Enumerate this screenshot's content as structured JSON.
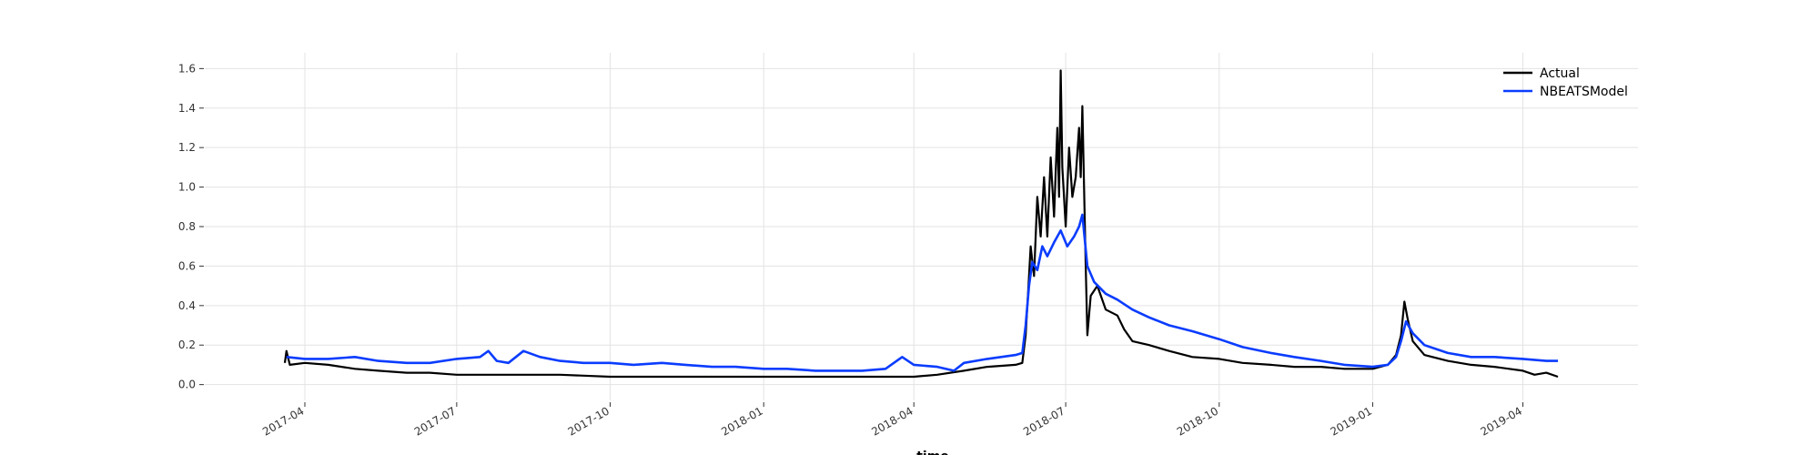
{
  "chart_data": {
    "type": "line",
    "title": "",
    "xlabel": "time",
    "ylabel": "",
    "xlim": [
      "2017-01-31",
      "2019-06-09"
    ],
    "ylim": [
      -0.08,
      1.68
    ],
    "grid": true,
    "legend": {
      "position": "top-right",
      "entries": [
        "Actual",
        "NBEATSModel"
      ]
    },
    "x_ticks": [
      "2017-04",
      "2017-07",
      "2017-10",
      "2018-01",
      "2018-04",
      "2018-07",
      "2018-10",
      "2019-01",
      "2019-04"
    ],
    "y_ticks": [
      "0.0",
      "0.2",
      "0.4",
      "0.6",
      "0.8",
      "1.0",
      "1.2",
      "1.4",
      "1.6"
    ],
    "x_tick_dates": [
      "2017-04-01",
      "2017-07-01",
      "2017-10-01",
      "2018-01-01",
      "2018-04-01",
      "2018-07-01",
      "2018-10-01",
      "2019-01-01",
      "2019-04-01"
    ],
    "y_tick_values": [
      0.0,
      0.2,
      0.4,
      0.6,
      0.8,
      1.0,
      1.2,
      1.4,
      1.6
    ],
    "series": [
      {
        "name": "Actual",
        "color": "#000000",
        "points": [
          [
            "2017-03-20",
            0.11
          ],
          [
            "2017-03-21",
            0.17
          ],
          [
            "2017-03-23",
            0.1
          ],
          [
            "2017-04-01",
            0.11
          ],
          [
            "2017-04-15",
            0.1
          ],
          [
            "2017-05-01",
            0.08
          ],
          [
            "2017-05-15",
            0.07
          ],
          [
            "2017-06-01",
            0.06
          ],
          [
            "2017-06-15",
            0.06
          ],
          [
            "2017-07-01",
            0.05
          ],
          [
            "2017-08-01",
            0.05
          ],
          [
            "2017-09-01",
            0.05
          ],
          [
            "2017-10-01",
            0.04
          ],
          [
            "2017-11-01",
            0.04
          ],
          [
            "2017-12-01",
            0.04
          ],
          [
            "2018-01-01",
            0.04
          ],
          [
            "2018-02-01",
            0.04
          ],
          [
            "2018-03-01",
            0.04
          ],
          [
            "2018-04-01",
            0.04
          ],
          [
            "2018-04-15",
            0.05
          ],
          [
            "2018-05-01",
            0.07
          ],
          [
            "2018-05-15",
            0.09
          ],
          [
            "2018-06-01",
            0.1
          ],
          [
            "2018-06-05",
            0.11
          ],
          [
            "2018-06-07",
            0.25
          ],
          [
            "2018-06-09",
            0.55
          ],
          [
            "2018-06-10",
            0.7
          ],
          [
            "2018-06-12",
            0.55
          ],
          [
            "2018-06-14",
            0.95
          ],
          [
            "2018-06-16",
            0.75
          ],
          [
            "2018-06-18",
            1.05
          ],
          [
            "2018-06-20",
            0.75
          ],
          [
            "2018-06-22",
            1.15
          ],
          [
            "2018-06-24",
            0.85
          ],
          [
            "2018-06-26",
            1.3
          ],
          [
            "2018-06-27",
            0.95
          ],
          [
            "2018-06-28",
            1.59
          ],
          [
            "2018-06-29",
            1.1
          ],
          [
            "2018-07-01",
            0.8
          ],
          [
            "2018-07-03",
            1.2
          ],
          [
            "2018-07-05",
            0.95
          ],
          [
            "2018-07-07",
            1.05
          ],
          [
            "2018-07-09",
            1.3
          ],
          [
            "2018-07-10",
            1.05
          ],
          [
            "2018-07-11",
            1.41
          ],
          [
            "2018-07-13",
            0.6
          ],
          [
            "2018-07-14",
            0.25
          ],
          [
            "2018-07-16",
            0.45
          ],
          [
            "2018-07-20",
            0.5
          ],
          [
            "2018-07-25",
            0.38
          ],
          [
            "2018-08-01",
            0.35
          ],
          [
            "2018-08-05",
            0.28
          ],
          [
            "2018-08-10",
            0.22
          ],
          [
            "2018-08-20",
            0.2
          ],
          [
            "2018-09-01",
            0.17
          ],
          [
            "2018-09-15",
            0.14
          ],
          [
            "2018-10-01",
            0.13
          ],
          [
            "2018-10-15",
            0.11
          ],
          [
            "2018-11-01",
            0.1
          ],
          [
            "2018-11-15",
            0.09
          ],
          [
            "2018-12-01",
            0.09
          ],
          [
            "2018-12-15",
            0.08
          ],
          [
            "2019-01-01",
            0.08
          ],
          [
            "2019-01-10",
            0.1
          ],
          [
            "2019-01-15",
            0.15
          ],
          [
            "2019-01-18",
            0.25
          ],
          [
            "2019-01-20",
            0.42
          ],
          [
            "2019-01-22",
            0.33
          ],
          [
            "2019-01-25",
            0.22
          ],
          [
            "2019-02-01",
            0.15
          ],
          [
            "2019-02-15",
            0.12
          ],
          [
            "2019-03-01",
            0.1
          ],
          [
            "2019-03-15",
            0.09
          ],
          [
            "2019-04-01",
            0.07
          ],
          [
            "2019-04-08",
            0.05
          ],
          [
            "2019-04-15",
            0.06
          ],
          [
            "2019-04-22",
            0.04
          ]
        ]
      },
      {
        "name": "NBEATSModel",
        "color": "#0a3cff",
        "points": [
          [
            "2017-03-21",
            0.14
          ],
          [
            "2017-04-01",
            0.13
          ],
          [
            "2017-04-15",
            0.13
          ],
          [
            "2017-05-01",
            0.14
          ],
          [
            "2017-05-15",
            0.12
          ],
          [
            "2017-06-01",
            0.11
          ],
          [
            "2017-06-15",
            0.11
          ],
          [
            "2017-07-01",
            0.13
          ],
          [
            "2017-07-15",
            0.14
          ],
          [
            "2017-07-20",
            0.17
          ],
          [
            "2017-07-25",
            0.12
          ],
          [
            "2017-08-01",
            0.11
          ],
          [
            "2017-08-10",
            0.17
          ],
          [
            "2017-08-20",
            0.14
          ],
          [
            "2017-09-01",
            0.12
          ],
          [
            "2017-09-15",
            0.11
          ],
          [
            "2017-10-01",
            0.11
          ],
          [
            "2017-10-15",
            0.1
          ],
          [
            "2017-11-01",
            0.11
          ],
          [
            "2017-11-15",
            0.1
          ],
          [
            "2017-12-01",
            0.09
          ],
          [
            "2017-12-15",
            0.09
          ],
          [
            "2018-01-01",
            0.08
          ],
          [
            "2018-01-15",
            0.08
          ],
          [
            "2018-02-01",
            0.07
          ],
          [
            "2018-02-15",
            0.07
          ],
          [
            "2018-03-01",
            0.07
          ],
          [
            "2018-03-15",
            0.08
          ],
          [
            "2018-03-25",
            0.14
          ],
          [
            "2018-04-01",
            0.1
          ],
          [
            "2018-04-15",
            0.09
          ],
          [
            "2018-04-25",
            0.07
          ],
          [
            "2018-05-01",
            0.11
          ],
          [
            "2018-05-15",
            0.13
          ],
          [
            "2018-06-01",
            0.15
          ],
          [
            "2018-06-05",
            0.16
          ],
          [
            "2018-06-07",
            0.3
          ],
          [
            "2018-06-09",
            0.5
          ],
          [
            "2018-06-11",
            0.62
          ],
          [
            "2018-06-14",
            0.58
          ],
          [
            "2018-06-17",
            0.7
          ],
          [
            "2018-06-20",
            0.65
          ],
          [
            "2018-06-24",
            0.72
          ],
          [
            "2018-06-28",
            0.78
          ],
          [
            "2018-07-02",
            0.7
          ],
          [
            "2018-07-06",
            0.75
          ],
          [
            "2018-07-09",
            0.8
          ],
          [
            "2018-07-11",
            0.86
          ],
          [
            "2018-07-14",
            0.6
          ],
          [
            "2018-07-18",
            0.52
          ],
          [
            "2018-07-25",
            0.46
          ],
          [
            "2018-08-01",
            0.43
          ],
          [
            "2018-08-10",
            0.38
          ],
          [
            "2018-08-20",
            0.34
          ],
          [
            "2018-09-01",
            0.3
          ],
          [
            "2018-09-15",
            0.27
          ],
          [
            "2018-10-01",
            0.23
          ],
          [
            "2018-10-15",
            0.19
          ],
          [
            "2018-11-01",
            0.16
          ],
          [
            "2018-11-15",
            0.14
          ],
          [
            "2018-12-01",
            0.12
          ],
          [
            "2018-12-15",
            0.1
          ],
          [
            "2019-01-01",
            0.09
          ],
          [
            "2019-01-10",
            0.1
          ],
          [
            "2019-01-15",
            0.14
          ],
          [
            "2019-01-18",
            0.22
          ],
          [
            "2019-01-21",
            0.32
          ],
          [
            "2019-01-25",
            0.26
          ],
          [
            "2019-02-01",
            0.2
          ],
          [
            "2019-02-15",
            0.16
          ],
          [
            "2019-03-01",
            0.14
          ],
          [
            "2019-03-15",
            0.14
          ],
          [
            "2019-04-01",
            0.13
          ],
          [
            "2019-04-15",
            0.12
          ],
          [
            "2019-04-22",
            0.12
          ]
        ]
      }
    ]
  }
}
